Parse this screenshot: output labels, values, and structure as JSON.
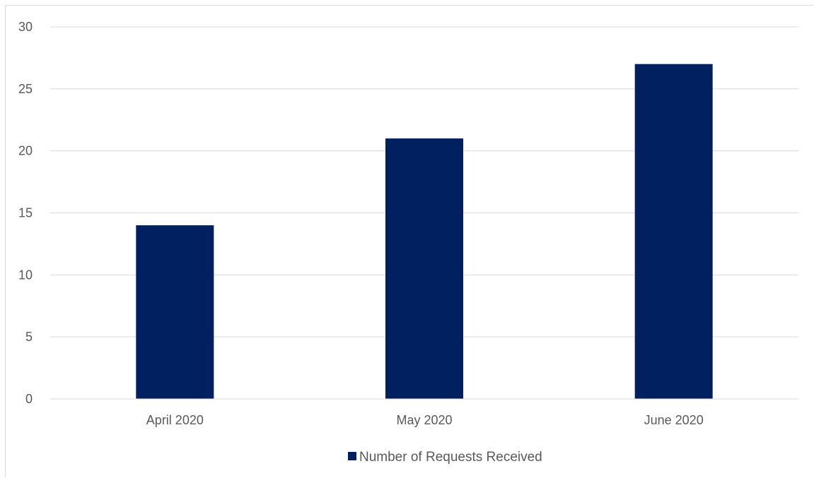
{
  "chart_data": {
    "type": "bar",
    "categories": [
      "April  2020",
      "May  2020",
      "June 2020"
    ],
    "series": [
      {
        "name": "Number of Requests Received",
        "values": [
          14,
          21,
          27
        ],
        "color": "#002060"
      }
    ],
    "ylim": [
      0,
      30
    ],
    "yticks": [
      "0",
      "5",
      "10",
      "15",
      "20",
      "25",
      "30"
    ],
    "grid": true,
    "legend_position": "bottom"
  }
}
